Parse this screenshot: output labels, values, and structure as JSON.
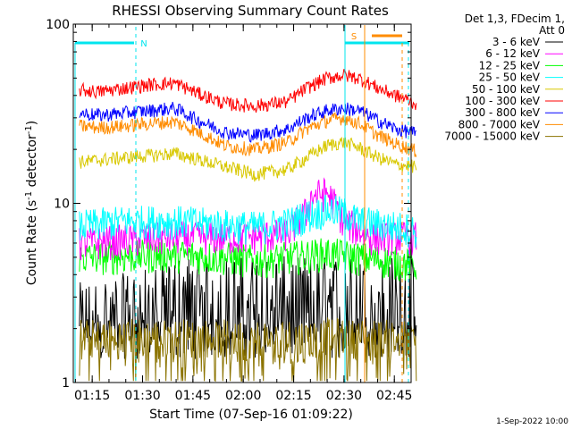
{
  "chart_data": {
    "type": "line",
    "title": "RHESSI Observing Summary Count Rates",
    "xlabel": "Start Time (07-Sep-16 01:09:22)",
    "ylabel": "Count Rate (s⁻¹ detector⁻¹)",
    "ylabel_main": "Count Rate (s",
    "ylabel_sup1": "-1",
    "ylabel_mid": " detector",
    "ylabel_sup2": "-1",
    "ylabel_end": ")",
    "y_scale": "log",
    "ylim": [
      1,
      100
    ],
    "xlim": [
      "01:09:22",
      "02:50:00"
    ],
    "x_ticks": [
      "01:15",
      "01:30",
      "01:45",
      "02:00",
      "02:15",
      "02:30",
      "02:45"
    ],
    "y_ticks": [
      "1",
      "10",
      "100"
    ],
    "legend": {
      "header": [
        "Det 1,3, FDecim 1,",
        "Att 0"
      ],
      "placement": "right"
    },
    "markers": [
      {
        "label": "N",
        "color": "#00e5ee"
      },
      {
        "label": "S",
        "color": "#ff8c00"
      }
    ],
    "series": [
      {
        "name": "3 - 6 keV",
        "color": "#000000",
        "x_min": [
          1.85,
          30.15,
          29.6,
          60.6,
          85.05,
          100.75,
          101.65,
          102.3
        ],
        "y": [
          2.5,
          3.2,
          3.5,
          3.5,
          3.5,
          3.5,
          3.0,
          2.5
        ]
      },
      {
        "name": "6 - 12 keV",
        "color": "#ff00ff",
        "x_min": [
          1.85,
          30.15,
          54.25,
          63.95,
          69.55,
          71.05,
          75.55,
          78.6,
          80.25,
          88.35,
          100.75,
          102.3
        ],
        "y": [
          6.0,
          6.5,
          6.5,
          6.8,
          9.0,
          11.0,
          11.5,
          9.5,
          8.0,
          6.5,
          6.5,
          6.5
        ]
      },
      {
        "name": "12 - 25 keV",
        "color": "#00ff00",
        "x_min": [
          1.85,
          30.15,
          45.15,
          54.25,
          63.95,
          75.55,
          85.05,
          100.75,
          102.3
        ],
        "y": [
          5.0,
          5.2,
          5.0,
          4.8,
          5.0,
          5.3,
          5.0,
          4.6,
          4.5
        ]
      },
      {
        "name": "25 - 50 keV",
        "color": "#00ffff",
        "x_min": [
          1.85,
          15.25,
          30.15,
          45.15,
          54.25,
          63.95,
          69.55,
          75.55,
          80.25,
          85.05,
          100.75,
          102.3
        ],
        "y": [
          7.5,
          8.0,
          8.0,
          7.6,
          7.4,
          7.8,
          8.6,
          9.2,
          9.0,
          8.0,
          7.2,
          7.0
        ]
      },
      {
        "name": "50 - 100 keV",
        "color": "#d8c800",
        "x_min": [
          1.85,
          15.25,
          30.15,
          45.15,
          54.25,
          63.95,
          69.55,
          75.55,
          80.25,
          85.05,
          90.75,
          96.05,
          102.3
        ],
        "y": [
          17.0,
          18.0,
          19.0,
          16.0,
          14.5,
          15.5,
          18.0,
          21.0,
          22.0,
          20.5,
          18.0,
          16.5,
          16.0
        ]
      },
      {
        "name": "100 - 300 keV",
        "color": "#ff0000",
        "x_min": [
          1.85,
          7.65,
          15.25,
          23.05,
          30.15,
          37.25,
          45.15,
          54.25,
          63.95,
          69.55,
          75.55,
          80.25,
          85.05,
          90.75,
          96.05,
          100.75,
          102.3
        ],
        "y": [
          43.0,
          42.0,
          44.0,
          46.0,
          47.0,
          41.0,
          36.0,
          35.0,
          37.0,
          44.0,
          50.0,
          52.0,
          50.0,
          44.0,
          40.0,
          37.0,
          36.0
        ]
      },
      {
        "name": "300 - 800 keV",
        "color": "#0000ff",
        "x_min": [
          1.85,
          7.65,
          15.25,
          23.05,
          30.15,
          37.25,
          45.15,
          54.25,
          63.95,
          69.55,
          75.55,
          80.25,
          85.05,
          90.75,
          96.05,
          100.75,
          102.3
        ],
        "y": [
          32.0,
          31.0,
          32.0,
          33.0,
          34.0,
          29.0,
          25.0,
          24.0,
          26.0,
          30.0,
          33.0,
          34.0,
          33.0,
          29.0,
          26.0,
          25.0,
          24.0
        ]
      },
      {
        "name": "800 - 7000 keV",
        "color": "#ff8c00",
        "x_min": [
          1.85,
          7.65,
          15.25,
          23.05,
          30.15,
          37.25,
          45.15,
          54.25,
          63.95,
          69.55,
          75.55,
          80.25,
          85.05,
          90.75,
          96.05,
          100.75,
          102.3
        ],
        "y": [
          27.0,
          26.5,
          27.0,
          28.0,
          28.5,
          25.0,
          21.0,
          20.0,
          22.0,
          26.0,
          29.0,
          30.0,
          28.0,
          24.0,
          21.5,
          20.0,
          19.5
        ]
      },
      {
        "name": "7000 - 15000 keV",
        "color": "#8b7300",
        "x_min": [
          1.85,
          30.15,
          45.15,
          54.25,
          63.95,
          75.55,
          85.05,
          100.75,
          102.3
        ],
        "y": [
          1.6,
          1.6,
          1.5,
          1.5,
          1.5,
          1.6,
          1.6,
          1.5,
          1.5
        ]
      }
    ]
  },
  "footer": {
    "date": "1-Sep-2022 10:00"
  }
}
